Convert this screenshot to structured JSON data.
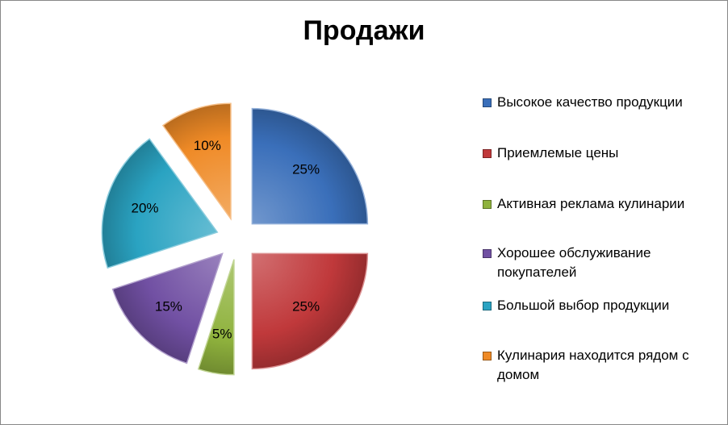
{
  "chart_data": {
    "type": "pie",
    "title": "Продажи",
    "exploded": true,
    "legend_position": "right",
    "slices": [
      {
        "label": "Высокое качество продукции",
        "value": 25,
        "value_label": "25%",
        "color": "#3a6fba"
      },
      {
        "label": "Приемлемые цены",
        "value": 25,
        "value_label": "25%",
        "color": "#c0393b"
      },
      {
        "label": "Активная реклама кулинарии",
        "value": 5,
        "value_label": "5%",
        "color": "#8fb23d"
      },
      {
        "label": "Хорошее обслуживание покупателей",
        "value": 15,
        "value_label": "15%",
        "color": "#7150a3"
      },
      {
        "label": "Большой выбор продукции",
        "value": 20,
        "value_label": "20%",
        "color": "#2aa3c2"
      },
      {
        "label": "Кулинария находится рядом с домом",
        "value": 10,
        "value_label": "10%",
        "color": "#ef8a26"
      }
    ]
  }
}
